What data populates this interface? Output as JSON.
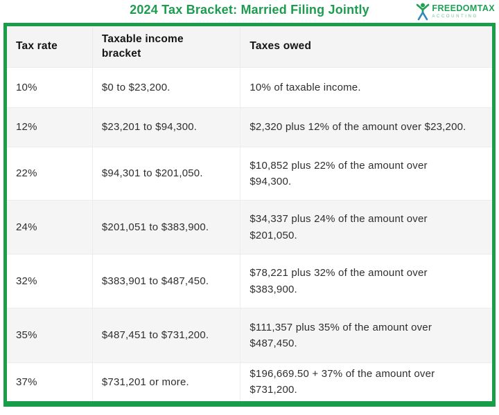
{
  "title": "2024 Tax Bracket: Married Filing Jointly",
  "logo": {
    "name": "FREEDOMTAX",
    "subtext": "ACCOUNTING"
  },
  "colors": {
    "accent_green": "#189e49",
    "title_green": "#1d9c4f",
    "logo_blue": "#2e86c1",
    "header_bg": "#f5f4f4",
    "alt_row_bg": "#f6f5f5"
  },
  "chart_data": {
    "type": "table",
    "title": "2024 Tax Bracket: Married Filing Jointly",
    "columns": [
      "Tax rate",
      "Taxable income\nbracket",
      "Taxes owed"
    ],
    "rows": [
      [
        "10%",
        "$0 to $23,200.",
        "10% of taxable income."
      ],
      [
        "12%",
        "$23,201 to $94,300.",
        "$2,320 plus 12% of the amount over $23,200."
      ],
      [
        "22%",
        "$94,301 to $201,050.",
        "$10,852 plus 22% of the amount over\n$94,300."
      ],
      [
        "24%",
        "$201,051 to $383,900.",
        "$34,337 plus 24% of the amount over\n$201,050."
      ],
      [
        "32%",
        "$383,901 to $487,450.",
        "$78,221 plus 32% of the amount over\n$383,900."
      ],
      [
        "35%",
        "$487,451 to $731,200.",
        "$111,357 plus 35% of the amount over\n$487,450."
      ],
      [
        "37%",
        "$731,201 or more.",
        "$196,669.50 + 37% of the amount over\n$731,200."
      ]
    ]
  }
}
